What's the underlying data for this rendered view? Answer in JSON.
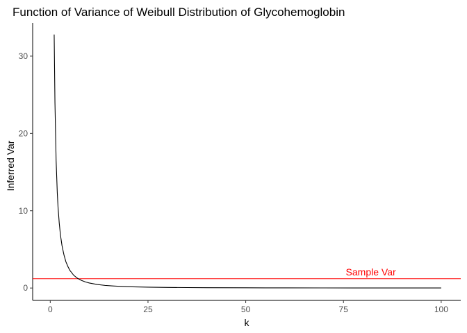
{
  "chart_data": {
    "type": "line",
    "title": "Function of Variance of Weibull Distribution of Glycohemoglobin",
    "xlabel": "k",
    "ylabel": "Inferred Var",
    "xlim": [
      -4.5,
      105
    ],
    "ylim": [
      -1.6,
      34.3
    ],
    "x_ticks": [
      0,
      25,
      50,
      75,
      100
    ],
    "y_ticks": [
      0,
      10,
      20,
      30
    ],
    "grid": false,
    "series": [
      {
        "color": "#000000",
        "points": [
          [
            1.0,
            32.8
          ],
          [
            1.2,
            24.0
          ],
          [
            1.5,
            16.5
          ],
          [
            1.8,
            12.3
          ],
          [
            2.0,
            10.4
          ],
          [
            2.3,
            8.4
          ],
          [
            2.6,
            6.9
          ],
          [
            3.0,
            5.5
          ],
          [
            3.5,
            4.3
          ],
          [
            4.0,
            3.4
          ],
          [
            4.5,
            2.8
          ],
          [
            5.0,
            2.3
          ],
          [
            6.0,
            1.65
          ],
          [
            7.0,
            1.25
          ],
          [
            8.0,
            0.98
          ],
          [
            9.0,
            0.79
          ],
          [
            10.0,
            0.65
          ],
          [
            12.0,
            0.46
          ],
          [
            14.0,
            0.34
          ],
          [
            16.0,
            0.27
          ],
          [
            18.0,
            0.21
          ],
          [
            20.0,
            0.17
          ],
          [
            25.0,
            0.11
          ],
          [
            30.0,
            0.08
          ],
          [
            35.0,
            0.06
          ],
          [
            40.0,
            0.045
          ],
          [
            50.0,
            0.03
          ],
          [
            60.0,
            0.02
          ],
          [
            70.0,
            0.015
          ],
          [
            80.0,
            0.012
          ],
          [
            90.0,
            0.01
          ],
          [
            100.0,
            0.008
          ]
        ]
      }
    ],
    "reference_lines": [
      {
        "orientation": "horizontal",
        "y": 1.2,
        "color": "#ff0000",
        "label": "Sample Var",
        "label_x": 82
      }
    ]
  }
}
